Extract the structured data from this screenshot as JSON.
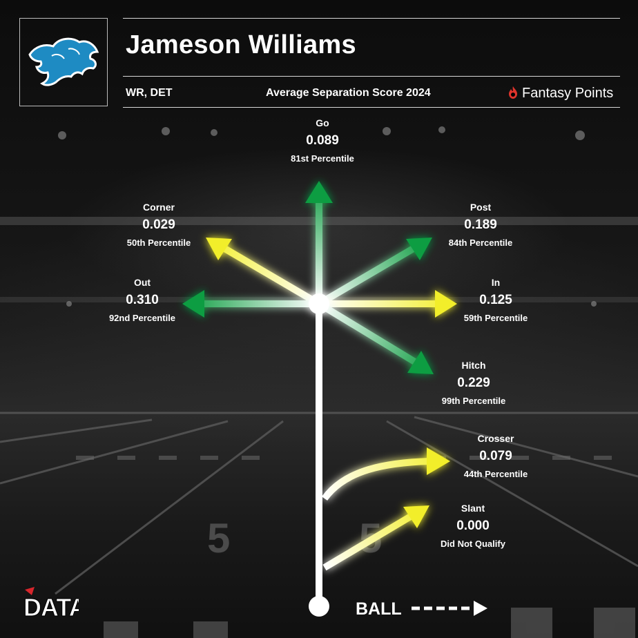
{
  "header": {
    "player_name": "Jameson Williams",
    "position_team": "WR, DET",
    "metric_title": "Average Separation Score 2024",
    "brand": "Fantasy Points"
  },
  "routes": {
    "go": {
      "name": "Go",
      "value": "0.089",
      "percentile": "81st Percentile",
      "color": "#0f9d42"
    },
    "corner": {
      "name": "Corner",
      "value": "0.029",
      "percentile": "50th Percentile",
      "color": "#f2ee2a"
    },
    "post": {
      "name": "Post",
      "value": "0.189",
      "percentile": "84th Percentile",
      "color": "#0f9d42"
    },
    "out": {
      "name": "Out",
      "value": "0.310",
      "percentile": "92nd Percentile",
      "color": "#0f9d42"
    },
    "in": {
      "name": "In",
      "value": "0.125",
      "percentile": "59th Percentile",
      "color": "#f2ee2a"
    },
    "hitch": {
      "name": "Hitch",
      "value": "0.229",
      "percentile": "99th Percentile",
      "color": "#0f9d42"
    },
    "crosser": {
      "name": "Crosser",
      "value": "0.079",
      "percentile": "44th Percentile",
      "color": "#f2ee2a"
    },
    "slant": {
      "name": "Slant",
      "value": "0.000",
      "percentile": "Did Not Qualify",
      "color": "#f2ee2a"
    }
  },
  "ball_label": "BALL",
  "watermark": "DATA",
  "team_logo": "detroit-lions-logo",
  "field_number": "5"
}
